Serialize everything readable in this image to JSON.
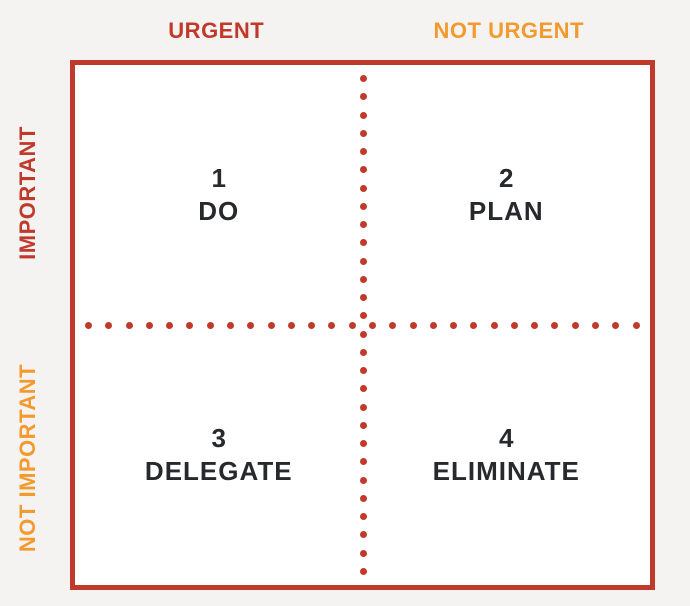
{
  "diagram": {
    "type": "matrix-2x2",
    "background_color": "#f4f3f1",
    "matrix_background": "#ffffff",
    "border_color": "#c03a2b",
    "border_width": 5,
    "dot_color": "#c03a2b",
    "dot_diameter": 7,
    "dots_per_divider": 28,
    "text_color": "#27292c",
    "header_fontsize": 22,
    "header_weight": 800,
    "quadrant_fontsize": 26,
    "quadrant_weight": 800,
    "columns": [
      {
        "label": "URGENT",
        "color": "#c03a2b"
      },
      {
        "label": "NOT URGENT",
        "color": "#f29a2e"
      }
    ],
    "rows": [
      {
        "label": "IMPORTANT",
        "color": "#c03a2b"
      },
      {
        "label": "NOT IMPORTANT",
        "color": "#f29a2e"
      }
    ],
    "quadrants": [
      {
        "number": "1",
        "label": "DO"
      },
      {
        "number": "2",
        "label": "PLAN"
      },
      {
        "number": "3",
        "label": "DELEGATE"
      },
      {
        "number": "4",
        "label": "ELIMINATE"
      }
    ]
  }
}
